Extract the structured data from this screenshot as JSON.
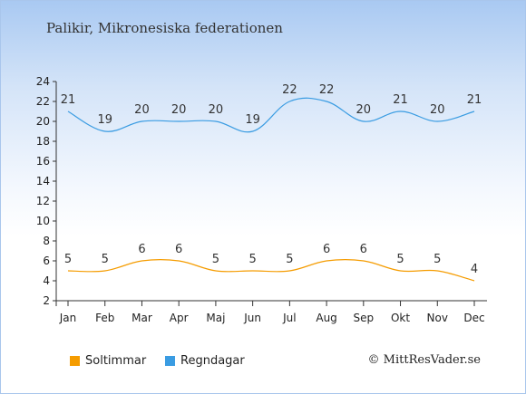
{
  "title": "Palikir, Mikronesiska federationen",
  "copyright": "© MittResVader.se",
  "chart_data": {
    "type": "line",
    "categories": [
      "Jan",
      "Feb",
      "Mar",
      "Apr",
      "Maj",
      "Jun",
      "Jul",
      "Aug",
      "Sep",
      "Okt",
      "Nov",
      "Dec"
    ],
    "series": [
      {
        "name": "Soltimmar",
        "color": "#f59c00",
        "values": [
          5,
          5,
          6,
          6,
          5,
          5,
          5,
          6,
          6,
          5,
          5,
          4
        ]
      },
      {
        "name": "Regndagar",
        "color": "#3a9ce2",
        "values": [
          21,
          19,
          20,
          20,
          20,
          19,
          22,
          22,
          20,
          21,
          20,
          21
        ]
      }
    ],
    "ylim": [
      2,
      24
    ],
    "yticks": [
      2,
      4,
      6,
      8,
      10,
      12,
      14,
      16,
      18,
      20,
      22,
      24
    ],
    "legend": "bottom-left",
    "data_labels": true
  }
}
